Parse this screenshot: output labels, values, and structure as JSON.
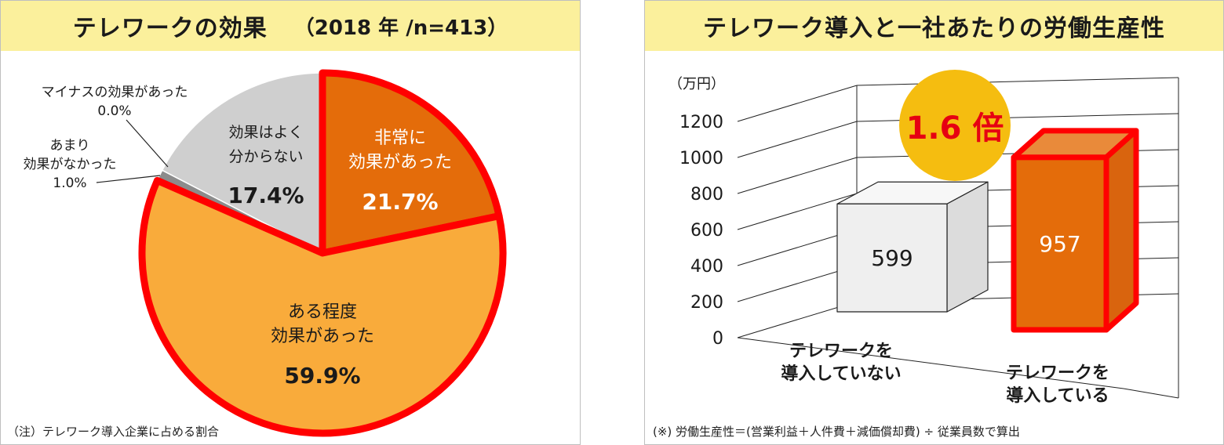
{
  "left_panel": {
    "title": "テレワークの効果",
    "subtitle": "（2018 年 /n=413）",
    "note": "（注）テレワーク導入企業に占める割合"
  },
  "right_panel": {
    "title": "テレワーク導入と一社あたりの労働生産性",
    "badge": "1.6 倍",
    "note": "(※) 労働生産性＝(営業利益＋人件費＋減価償却費) ÷ 従業員数で算出"
  },
  "chart_data": [
    {
      "type": "pie",
      "title": "テレワークの効果",
      "slices": [
        {
          "label_lines": [
            "非常に",
            "効果があった"
          ],
          "value_label": "21.7%",
          "value": 21.7,
          "color": "#e46c0a",
          "emphasis": true
        },
        {
          "label_lines": [
            "ある程度",
            "効果があった"
          ],
          "value_label": "59.9%",
          "value": 59.9,
          "color": "#f9ab3b",
          "emphasis": true
        },
        {
          "label_lines": [
            "マイナスの効果があった"
          ],
          "value_label": "0.0%",
          "value": 0.0,
          "color": "#555555",
          "emphasis": false
        },
        {
          "label_lines": [
            "あまり",
            "効果がなかった"
          ],
          "value_label": "1.0%",
          "value": 1.0,
          "color": "#8c8c8c",
          "emphasis": false
        },
        {
          "label_lines": [
            "効果はよく",
            "分からない"
          ],
          "value_label": "17.4%",
          "value": 17.4,
          "color": "#cfcfcf",
          "emphasis": false
        }
      ],
      "colors": {
        "highlight_border": "#ff0000"
      }
    },
    {
      "type": "bar",
      "title": "テレワーク導入と一社あたりの労働生産性",
      "ylabel": "（万円）",
      "ylim": [
        0,
        1200
      ],
      "yticks": [
        "0",
        "200",
        "400",
        "600",
        "800",
        "1000",
        "1200"
      ],
      "categories": [
        [
          "テレワークを",
          "導入していない"
        ],
        [
          "テレワークを",
          "導入している"
        ]
      ],
      "values": [
        599,
        957
      ],
      "value_labels": [
        "599",
        "957"
      ],
      "colors": {
        "bar1": "#efefef",
        "bar2": "#e46c0a",
        "bar2_border": "#ff0000"
      }
    }
  ]
}
